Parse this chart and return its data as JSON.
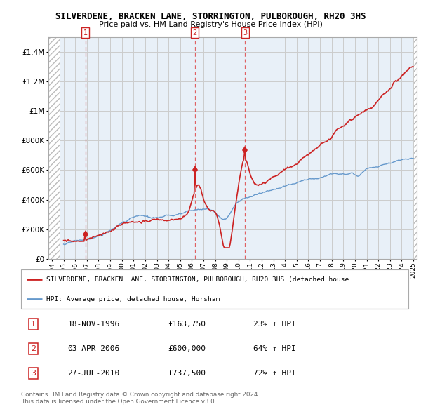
{
  "title1": "SILVERDENE, BRACKEN LANE, STORRINGTON, PULBOROUGH, RH20 3HS",
  "title2": "Price paid vs. HM Land Registry's House Price Index (HPI)",
  "xlim": [
    1993.7,
    2025.3
  ],
  "ylim": [
    0,
    1500000
  ],
  "yticks": [
    0,
    200000,
    400000,
    600000,
    800000,
    1000000,
    1200000,
    1400000
  ],
  "ytick_labels": [
    "£0",
    "£200K",
    "£400K",
    "£600K",
    "£800K",
    "£1M",
    "£1.2M",
    "£1.4M"
  ],
  "xtick_years": [
    1994,
    1995,
    1996,
    1997,
    1998,
    1999,
    2000,
    2001,
    2002,
    2003,
    2004,
    2005,
    2006,
    2007,
    2008,
    2009,
    2010,
    2011,
    2012,
    2013,
    2014,
    2015,
    2016,
    2017,
    2018,
    2019,
    2020,
    2021,
    2022,
    2023,
    2024,
    2025
  ],
  "sale_dates": [
    1996.88,
    2006.25,
    2010.57
  ],
  "sale_prices": [
    163750,
    600000,
    737500
  ],
  "sale_labels": [
    "1",
    "2",
    "3"
  ],
  "red_line_color": "#cc2222",
  "blue_line_color": "#6699cc",
  "legend_red": "SILVERDENE, BRACKEN LANE, STORRINGTON, PULBOROUGH, RH20 3HS (detached house",
  "legend_blue": "HPI: Average price, detached house, Horsham",
  "table_rows": [
    [
      "1",
      "18-NOV-1996",
      "£163,750",
      "23% ↑ HPI"
    ],
    [
      "2",
      "03-APR-2006",
      "£600,000",
      "64% ↑ HPI"
    ],
    [
      "3",
      "27-JUL-2010",
      "£737,500",
      "72% ↑ HPI"
    ]
  ],
  "footnote": "Contains HM Land Registry data © Crown copyright and database right 2024.\nThis data is licensed under the Open Government Licence v3.0.",
  "grid_color": "#cccccc",
  "bg_color": "#ffffff",
  "plot_bg": "#e8f0f8"
}
